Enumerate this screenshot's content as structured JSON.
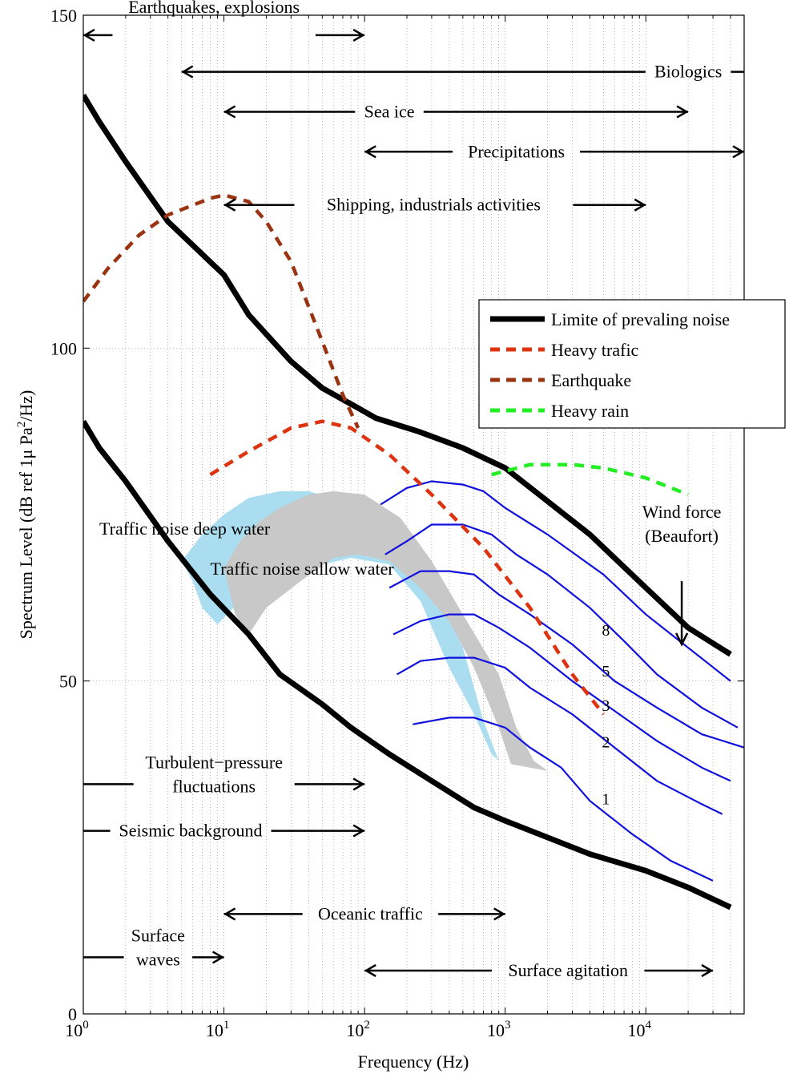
{
  "chart_data": {
    "type": "line",
    "xlabel": "Frequency (Hz)",
    "ylabel_parts": {
      "main": "Spectrum Level (dB ref 1μ Pa",
      "sup": "2",
      "end": "/Hz)"
    },
    "xscale": "log",
    "xlim": [
      1,
      50000
    ],
    "ylim": [
      0,
      150
    ],
    "grid": true,
    "x_ticks": [
      {
        "value": 1,
        "base": "10",
        "exp": "0"
      },
      {
        "value": 10,
        "base": "10",
        "exp": "1"
      },
      {
        "value": 100,
        "base": "10",
        "exp": "2"
      },
      {
        "value": 1000,
        "base": "10",
        "exp": "3"
      },
      {
        "value": 10000,
        "base": "10",
        "exp": "4"
      }
    ],
    "y_ticks": [
      0,
      50,
      100,
      150
    ],
    "legend": {
      "position": "right",
      "entries": [
        {
          "name": "Limite of prevaling noise",
          "color": "#000000",
          "style": "solid"
        },
        {
          "name": "Heavy trafic",
          "color": "#dd3311",
          "style": "dashed"
        },
        {
          "name": "Earthquake",
          "color": "#993311",
          "style": "dashed"
        },
        {
          "name": "Heavy rain",
          "color": "#22ee22",
          "style": "dashed"
        }
      ]
    },
    "series": [
      {
        "name": "Limite of prevaling noise",
        "color": "#000000",
        "points": [
          [
            1,
            138
          ],
          [
            1.3,
            134
          ],
          [
            2,
            128
          ],
          [
            4,
            119
          ],
          [
            10,
            111
          ],
          [
            15,
            105
          ],
          [
            30,
            98
          ],
          [
            50,
            94
          ],
          [
            90,
            91
          ],
          [
            120,
            89.5
          ],
          [
            240,
            87.5
          ],
          [
            500,
            85
          ],
          [
            1000,
            82
          ],
          [
            2000,
            77
          ],
          [
            4000,
            72
          ],
          [
            10000,
            64
          ],
          [
            20000,
            58
          ],
          [
            40000,
            54
          ]
        ]
      },
      {
        "name": "Limite of prevaling noise",
        "color": "#000000",
        "points": [
          [
            1,
            89
          ],
          [
            1.3,
            85
          ],
          [
            2,
            80
          ],
          [
            4,
            71
          ],
          [
            8,
            63
          ],
          [
            15,
            57
          ],
          [
            25,
            51
          ],
          [
            50,
            46.5
          ],
          [
            80,
            43
          ],
          [
            150,
            39
          ],
          [
            300,
            35
          ],
          [
            600,
            31
          ],
          [
            1000,
            29
          ],
          [
            2000,
            26.5
          ],
          [
            4000,
            24
          ],
          [
            10000,
            21.5
          ],
          [
            20000,
            19
          ],
          [
            40000,
            16
          ]
        ]
      },
      {
        "name": "Heavy trafic",
        "color": "#dd3311",
        "points": [
          [
            8,
            81
          ],
          [
            15,
            84.5
          ],
          [
            30,
            88
          ],
          [
            50,
            89
          ],
          [
            80,
            88
          ],
          [
            150,
            84
          ],
          [
            300,
            78
          ],
          [
            700,
            70
          ],
          [
            1500,
            61
          ],
          [
            3000,
            51
          ],
          [
            5000,
            45
          ]
        ]
      },
      {
        "name": "Earthquake",
        "color": "#993311",
        "points": [
          [
            1,
            107
          ],
          [
            1.5,
            112
          ],
          [
            2.5,
            117
          ],
          [
            4,
            120
          ],
          [
            8,
            122.5
          ],
          [
            10,
            123
          ],
          [
            15,
            122
          ],
          [
            20,
            119
          ],
          [
            30,
            113
          ],
          [
            50,
            101
          ],
          [
            70,
            93
          ],
          [
            90,
            88
          ]
        ]
      },
      {
        "name": "Heavy rain",
        "color": "#22ee22",
        "points": [
          [
            800,
            81
          ],
          [
            1500,
            82.5
          ],
          [
            3000,
            82.5
          ],
          [
            5000,
            82
          ],
          [
            10000,
            80.5
          ],
          [
            20000,
            78
          ]
        ]
      }
    ],
    "wind_curves": [
      {
        "label": "",
        "points": [
          [
            130,
            76.5
          ],
          [
            200,
            79
          ],
          [
            300,
            80
          ],
          [
            500,
            79.5
          ],
          [
            700,
            78.5
          ],
          [
            1000,
            76
          ],
          [
            2000,
            72
          ],
          [
            5000,
            66
          ],
          [
            10000,
            60
          ],
          [
            20000,
            55
          ],
          [
            40000,
            50
          ]
        ]
      },
      {
        "label": "8",
        "points": [
          [
            140,
            69
          ],
          [
            200,
            71
          ],
          [
            300,
            73.5
          ],
          [
            500,
            73.5
          ],
          [
            800,
            72
          ],
          [
            1200,
            69
          ],
          [
            2000,
            66
          ],
          [
            4000,
            61
          ],
          [
            7000,
            56
          ],
          [
            12000,
            51
          ],
          [
            25000,
            46
          ],
          [
            45000,
            43
          ]
        ]
      },
      {
        "label": "5",
        "points": [
          [
            150,
            64
          ],
          [
            250,
            66.5
          ],
          [
            400,
            66.5
          ],
          [
            600,
            66
          ],
          [
            900,
            63
          ],
          [
            1500,
            60
          ],
          [
            3000,
            55.5
          ],
          [
            6000,
            50
          ],
          [
            12000,
            46
          ],
          [
            25000,
            42
          ],
          [
            50000,
            40
          ]
        ]
      },
      {
        "label": "3",
        "points": [
          [
            160,
            57
          ],
          [
            250,
            59
          ],
          [
            400,
            60
          ],
          [
            600,
            60
          ],
          [
            900,
            58
          ],
          [
            1500,
            55
          ],
          [
            3000,
            50
          ],
          [
            6000,
            45.5
          ],
          [
            12000,
            41
          ],
          [
            25000,
            37
          ],
          [
            40000,
            35
          ]
        ]
      },
      {
        "label": "2",
        "points": [
          [
            170,
            51
          ],
          [
            250,
            53
          ],
          [
            400,
            53.5
          ],
          [
            600,
            53.5
          ],
          [
            1000,
            52
          ],
          [
            1500,
            49
          ],
          [
            3000,
            45
          ],
          [
            6000,
            40
          ],
          [
            12000,
            35
          ],
          [
            25000,
            31.5
          ],
          [
            35000,
            30
          ]
        ]
      },
      {
        "label": "1",
        "points": [
          [
            220,
            43.5
          ],
          [
            400,
            44.5
          ],
          [
            600,
            44.5
          ],
          [
            1000,
            43
          ],
          [
            1500,
            40
          ],
          [
            2500,
            37
          ],
          [
            4000,
            32
          ],
          [
            8000,
            27
          ],
          [
            15000,
            23
          ],
          [
            30000,
            20
          ]
        ]
      }
    ],
    "wind_color": "#1111dd",
    "wind_label_lines": [
      "Wind force",
      "(Beaufort)"
    ],
    "regions": [
      {
        "name": "Traffic noise deep water",
        "color": "#aaddf0",
        "points": [
          [
            5,
            68
          ],
          [
            7,
            72
          ],
          [
            10,
            75
          ],
          [
            15,
            77.5
          ],
          [
            25,
            78.5
          ],
          [
            40,
            78.5
          ],
          [
            70,
            77
          ],
          [
            120,
            74
          ],
          [
            200,
            70
          ],
          [
            350,
            62
          ],
          [
            500,
            55
          ],
          [
            700,
            44
          ],
          [
            900,
            38
          ],
          [
            800,
            39
          ],
          [
            600,
            45
          ],
          [
            400,
            52
          ],
          [
            250,
            62
          ],
          [
            150,
            67.5
          ],
          [
            80,
            68.5
          ],
          [
            40,
            67
          ],
          [
            20,
            65
          ],
          [
            13,
            62
          ],
          [
            9,
            58.5
          ],
          [
            7,
            61
          ],
          [
            6,
            65
          ]
        ]
      },
      {
        "name": "Traffic noise sallow water",
        "color": "#c8c8c8",
        "points": [
          [
            10,
            67
          ],
          [
            13,
            71
          ],
          [
            18,
            74
          ],
          [
            25,
            76
          ],
          [
            40,
            78
          ],
          [
            60,
            78.5
          ],
          [
            100,
            78
          ],
          [
            180,
            74.5
          ],
          [
            300,
            68
          ],
          [
            500,
            60
          ],
          [
            900,
            51
          ],
          [
            1200,
            43
          ],
          [
            1600,
            38
          ],
          [
            2000,
            36.5
          ],
          [
            1500,
            37
          ],
          [
            1100,
            37.5
          ],
          [
            900,
            43
          ],
          [
            600,
            52
          ],
          [
            400,
            59
          ],
          [
            250,
            64
          ],
          [
            150,
            68
          ],
          [
            90,
            69
          ],
          [
            60,
            68.5
          ],
          [
            35,
            65
          ],
          [
            20,
            61
          ],
          [
            15,
            57
          ],
          [
            12,
            60
          ]
        ]
      }
    ],
    "annotations": [
      {
        "text": "Earthquakes, explosions",
        "lo": 1,
        "hi": 100,
        "y": 147,
        "text_x": 8.5,
        "arrow_left": true,
        "arrow_right": true
      },
      {
        "text": "Biologics",
        "lo": 5,
        "hi": 50000,
        "y": 141.5,
        "text_x": 20000,
        "arrow_left": true,
        "arrow_right": false
      },
      {
        "text": "Sea ice",
        "lo": 10,
        "hi": 20000,
        "y": 135.5,
        "text_x": 150,
        "arrow_left": true,
        "arrow_right": true
      },
      {
        "text": "Precipitations",
        "lo": 100,
        "hi": 50000,
        "y": 129.5,
        "text_x": 1200,
        "arrow_left": true,
        "arrow_right": true
      },
      {
        "text": "Shipping, industrials activities",
        "lo": 10,
        "hi": 10000,
        "y": 121.5,
        "text_x": 310,
        "arrow_left": true,
        "arrow_right": true
      },
      {
        "text": "Oceanic traffic",
        "lo": 10,
        "hi": 1000,
        "y": 15,
        "text_x": 110,
        "arrow_left": true,
        "arrow_right": true
      },
      {
        "text": "Surface agitation",
        "lo": 100,
        "hi": 30000,
        "y": 6.5,
        "text_x": 2800,
        "arrow_left": true,
        "arrow_right": true
      },
      {
        "text": "Seismic background",
        "lo": 1,
        "hi": 100,
        "y": 27.5,
        "text_x": 5.8,
        "arrow_left": false,
        "arrow_right": true
      },
      {
        "text_lines": [
          "Turbulent−pressure",
          "fluctuations"
        ],
        "lo": 1,
        "hi": 100,
        "y": 34.5,
        "text_x": 8.5,
        "arrow_left": false,
        "arrow_right": true
      },
      {
        "text_lines": [
          "Surface",
          "waves"
        ],
        "lo": 1,
        "hi": 10,
        "y": 8.5,
        "text_x": 3.4,
        "arrow_left": false,
        "arrow_right": true
      }
    ]
  }
}
